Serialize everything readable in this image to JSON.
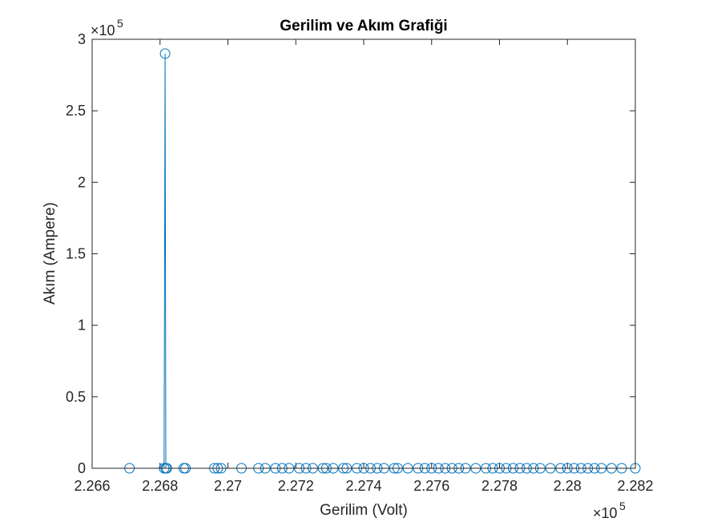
{
  "chart_data": {
    "type": "line",
    "title": "Gerilim ve Akım Grafiği",
    "xlabel": "Gerilim (Volt)",
    "ylabel": "Akım (Ampere)",
    "x_multiplier_label": "×10",
    "x_multiplier_exp": "5",
    "y_multiplier_label": "×10",
    "y_multiplier_exp": "5",
    "xlim": [
      226600,
      228200
    ],
    "ylim": [
      0,
      300000
    ],
    "xticks": [
      226600,
      226800,
      227000,
      227200,
      227400,
      227600,
      227800,
      228000,
      228200
    ],
    "xtick_labels": [
      "2.266",
      "2.268",
      "2.27",
      "2.272",
      "2.274",
      "2.276",
      "2.278",
      "2.28",
      "2.282"
    ],
    "yticks": [
      0,
      50000,
      100000,
      150000,
      200000,
      250000,
      300000
    ],
    "ytick_labels": [
      "0",
      "0.5",
      "1",
      "1.5",
      "2",
      "2.5",
      "3"
    ],
    "grid": false,
    "marker": "circle",
    "color": "#0072BD",
    "series": [
      {
        "x": [
          226710,
          226812,
          226815,
          226817,
          226820,
          226870,
          226875,
          226960,
          226970,
          226980,
          227040,
          227090,
          227110,
          227140,
          227160,
          227180,
          227210,
          227230,
          227250,
          227280,
          227290,
          227310,
          227340,
          227350,
          227380,
          227400,
          227420,
          227440,
          227460,
          227490,
          227500,
          227530,
          227560,
          227580,
          227600,
          227620,
          227640,
          227660,
          227680,
          227700,
          227730,
          227760,
          227780,
          227800,
          227820,
          227840,
          227860,
          227880,
          227900,
          227920,
          227950,
          227980,
          228000,
          228020,
          228040,
          228060,
          228080,
          228100,
          228130,
          228160,
          228200
        ],
        "y": [
          0,
          0,
          290000,
          0,
          0,
          0,
          0,
          0,
          0,
          0,
          0,
          0,
          0,
          0,
          0,
          0,
          0,
          0,
          0,
          0,
          0,
          0,
          0,
          0,
          0,
          0,
          0,
          0,
          0,
          0,
          0,
          0,
          0,
          0,
          0,
          0,
          0,
          0,
          0,
          0,
          0,
          0,
          0,
          0,
          0,
          0,
          0,
          0,
          0,
          0,
          0,
          0,
          0,
          0,
          0,
          0,
          0,
          0,
          0,
          0,
          0
        ]
      }
    ]
  }
}
